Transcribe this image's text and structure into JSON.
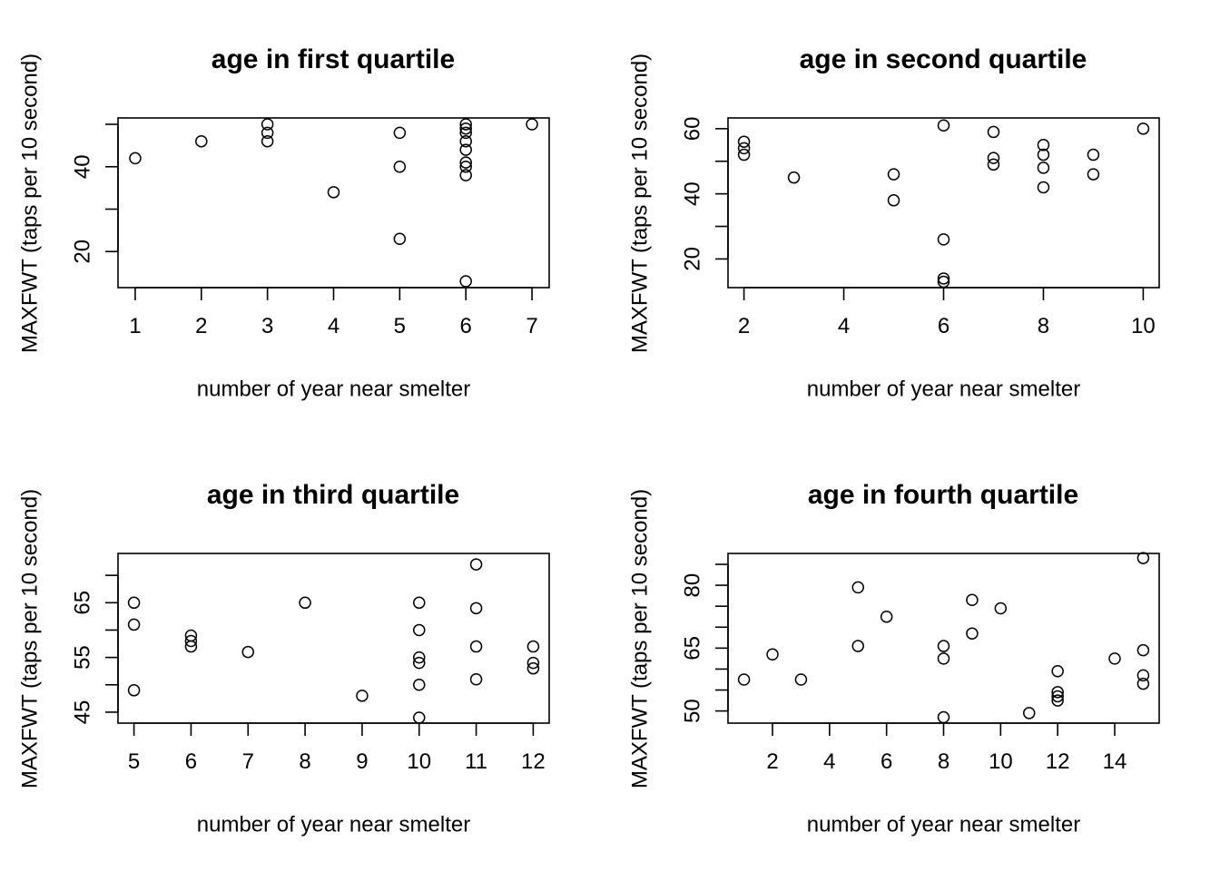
{
  "chart_data": [
    {
      "type": "scatter",
      "title": "age in first quartile",
      "xlabel": "number of year near smelter",
      "ylabel": "MAXFWT (taps per 10 second)",
      "xlim": [
        0.74,
        7.26
      ],
      "ylim": [
        11.5,
        51.5
      ],
      "xticks": [
        1,
        2,
        3,
        4,
        5,
        6,
        7
      ],
      "yticks": [
        20,
        30,
        40,
        50
      ],
      "ytick_labels": [
        "20",
        "",
        "40",
        ""
      ],
      "points": [
        {
          "x": 1,
          "y": 42
        },
        {
          "x": 2,
          "y": 46
        },
        {
          "x": 3,
          "y": 50
        },
        {
          "x": 3,
          "y": 48
        },
        {
          "x": 3,
          "y": 46
        },
        {
          "x": 4,
          "y": 34
        },
        {
          "x": 5,
          "y": 48
        },
        {
          "x": 5,
          "y": 40
        },
        {
          "x": 5,
          "y": 23
        },
        {
          "x": 6,
          "y": 50
        },
        {
          "x": 6,
          "y": 49
        },
        {
          "x": 6,
          "y": 48
        },
        {
          "x": 6,
          "y": 46
        },
        {
          "x": 6,
          "y": 44
        },
        {
          "x": 6,
          "y": 41
        },
        {
          "x": 6,
          "y": 40
        },
        {
          "x": 6,
          "y": 38
        },
        {
          "x": 6,
          "y": 13
        },
        {
          "x": 7,
          "y": 50
        }
      ]
    },
    {
      "type": "scatter",
      "title": "age in second quartile",
      "xlabel": "number of year near smelter",
      "ylabel": "MAXFWT (taps per 10 second)",
      "xlim": [
        1.68,
        10.32
      ],
      "ylim": [
        11.2,
        63.3
      ],
      "xticks": [
        2,
        4,
        6,
        8,
        10
      ],
      "yticks": [
        20,
        30,
        40,
        50,
        60
      ],
      "ytick_labels": [
        "20",
        "",
        "40",
        "",
        "60"
      ],
      "points": [
        {
          "x": 2,
          "y": 56
        },
        {
          "x": 2,
          "y": 54
        },
        {
          "x": 2,
          "y": 52
        },
        {
          "x": 3,
          "y": 45
        },
        {
          "x": 5,
          "y": 46
        },
        {
          "x": 5,
          "y": 38
        },
        {
          "x": 6,
          "y": 61
        },
        {
          "x": 6,
          "y": 26
        },
        {
          "x": 6,
          "y": 14
        },
        {
          "x": 6,
          "y": 13
        },
        {
          "x": 7,
          "y": 59
        },
        {
          "x": 7,
          "y": 51
        },
        {
          "x": 7,
          "y": 49
        },
        {
          "x": 8,
          "y": 55
        },
        {
          "x": 8,
          "y": 52
        },
        {
          "x": 8,
          "y": 48
        },
        {
          "x": 8,
          "y": 42
        },
        {
          "x": 9,
          "y": 52
        },
        {
          "x": 9,
          "y": 46
        },
        {
          "x": 10,
          "y": 60
        }
      ]
    },
    {
      "type": "scatter",
      "title": "age in third quartile",
      "xlabel": "number of year near smelter",
      "ylabel": "MAXFWT (taps per 10 second)",
      "xlim": [
        4.72,
        12.28
      ],
      "ylim": [
        43,
        74
      ],
      "xticks": [
        5,
        6,
        7,
        8,
        9,
        10,
        11,
        12
      ],
      "yticks": [
        45,
        50,
        55,
        60,
        65,
        70
      ],
      "ytick_labels": [
        "45",
        "",
        "55",
        "",
        "65",
        ""
      ],
      "points": [
        {
          "x": 5,
          "y": 65
        },
        {
          "x": 5,
          "y": 61
        },
        {
          "x": 5,
          "y": 49
        },
        {
          "x": 6,
          "y": 59
        },
        {
          "x": 6,
          "y": 58
        },
        {
          "x": 6,
          "y": 57
        },
        {
          "x": 7,
          "y": 56
        },
        {
          "x": 8,
          "y": 65
        },
        {
          "x": 9,
          "y": 48
        },
        {
          "x": 10,
          "y": 65
        },
        {
          "x": 10,
          "y": 60
        },
        {
          "x": 10,
          "y": 55
        },
        {
          "x": 10,
          "y": 54
        },
        {
          "x": 10,
          "y": 50
        },
        {
          "x": 10,
          "y": 44
        },
        {
          "x": 11,
          "y": 72
        },
        {
          "x": 11,
          "y": 64
        },
        {
          "x": 11,
          "y": 57
        },
        {
          "x": 11,
          "y": 51
        },
        {
          "x": 12,
          "y": 57
        },
        {
          "x": 12,
          "y": 54
        },
        {
          "x": 12,
          "y": 53
        }
      ]
    },
    {
      "type": "scatter",
      "title": "age in fourth quartile",
      "xlabel": "number of year near smelter",
      "ylabel": "MAXFWT (taps per 10 second)",
      "xlim": [
        0.44,
        15.56
      ],
      "ylim": [
        47.1,
        87.6
      ],
      "xticks": [
        2,
        4,
        6,
        8,
        10,
        12,
        14
      ],
      "yticks": [
        50,
        55,
        60,
        65,
        70,
        75,
        80,
        85
      ],
      "ytick_labels": [
        "50",
        "",
        "",
        "65",
        "",
        "",
        "80",
        ""
      ],
      "points": [
        {
          "x": 1,
          "y": 57.5
        },
        {
          "x": 2,
          "y": 63.5
        },
        {
          "x": 3,
          "y": 57.5
        },
        {
          "x": 5,
          "y": 79.5
        },
        {
          "x": 5,
          "y": 65.5
        },
        {
          "x": 6,
          "y": 72.5
        },
        {
          "x": 8,
          "y": 65.5
        },
        {
          "x": 8,
          "y": 62.5
        },
        {
          "x": 8,
          "y": 48.5
        },
        {
          "x": 9,
          "y": 76.5
        },
        {
          "x": 9,
          "y": 68.5
        },
        {
          "x": 10,
          "y": 74.5
        },
        {
          "x": 11,
          "y": 49.5
        },
        {
          "x": 12,
          "y": 59.5
        },
        {
          "x": 12,
          "y": 54.5
        },
        {
          "x": 12,
          "y": 53.5
        },
        {
          "x": 12,
          "y": 52.5
        },
        {
          "x": 14,
          "y": 62.5
        },
        {
          "x": 15,
          "y": 86.5
        },
        {
          "x": 15,
          "y": 64.5
        },
        {
          "x": 15,
          "y": 58.5
        },
        {
          "x": 15,
          "y": 56.5
        }
      ]
    }
  ]
}
